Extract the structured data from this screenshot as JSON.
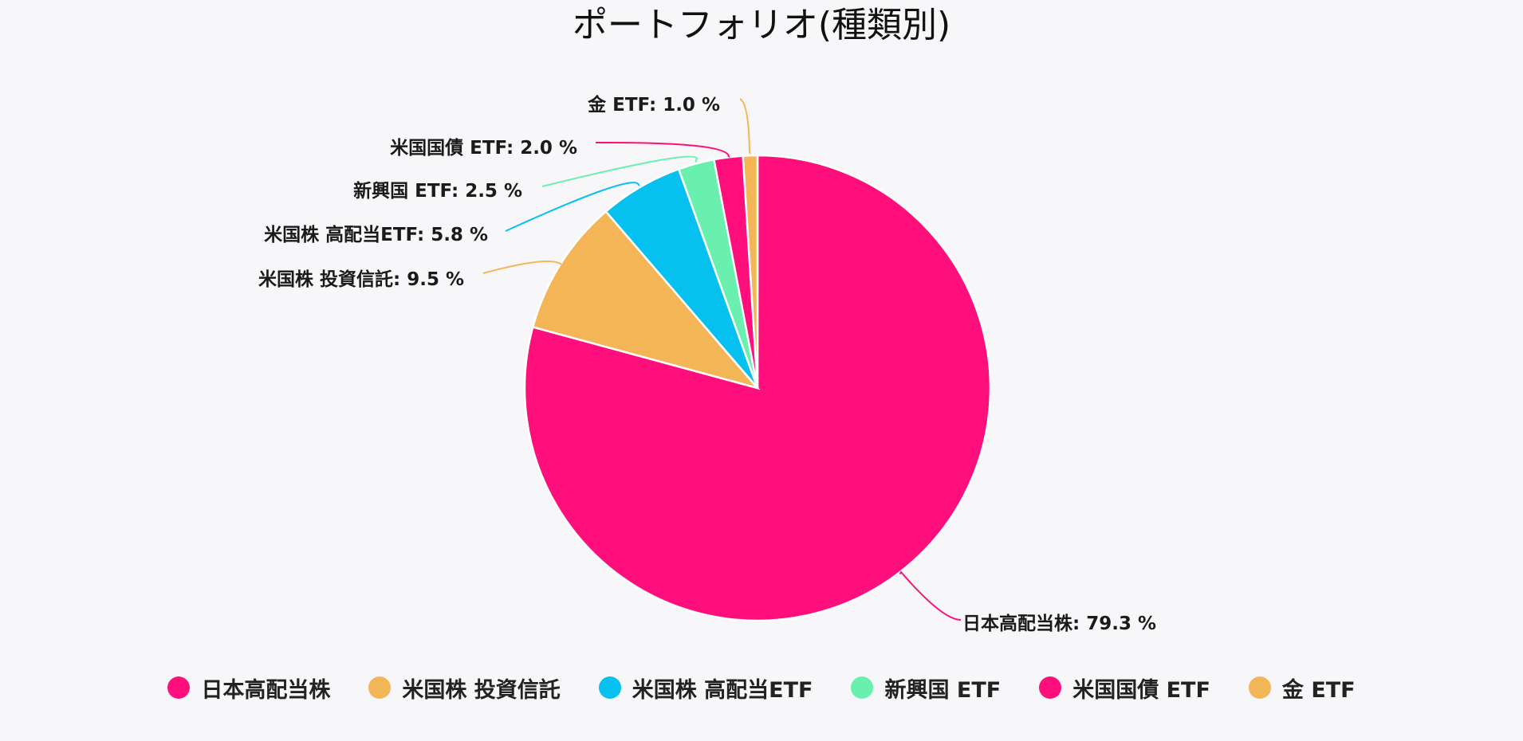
{
  "chart_data": {
    "type": "pie",
    "title": "ポートフォリオ(種類別)",
    "start_angle_deg": 0,
    "direction": "clockwise",
    "slices": [
      {
        "name": "日本高配当株",
        "value": 79.3,
        "label": "日本高配当株: 79.3 %",
        "color": "#ff0f7b"
      },
      {
        "name": "米国株 投資信託",
        "value": 9.5,
        "label": "米国株 投資信託: 9.5 %",
        "color": "#f4b556"
      },
      {
        "name": "米国株 高配当ETF",
        "value": 5.8,
        "label": "米国株 高配当ETF: 5.8 %",
        "color": "#06c0ef"
      },
      {
        "name": "新興国 ETF",
        "value": 2.5,
        "label": "新興国 ETF: 2.5 %",
        "color": "#69f0ae"
      },
      {
        "name": "米国国債 ETF",
        "value": 2.0,
        "label": "米国国債 ETF: 2.0 %",
        "color": "#ff0f7b"
      },
      {
        "name": "金 ETF",
        "value": 1.0,
        "label": "金 ETF: 1.0 %",
        "color": "#f4b556"
      }
    ],
    "legend_position": "bottom"
  }
}
